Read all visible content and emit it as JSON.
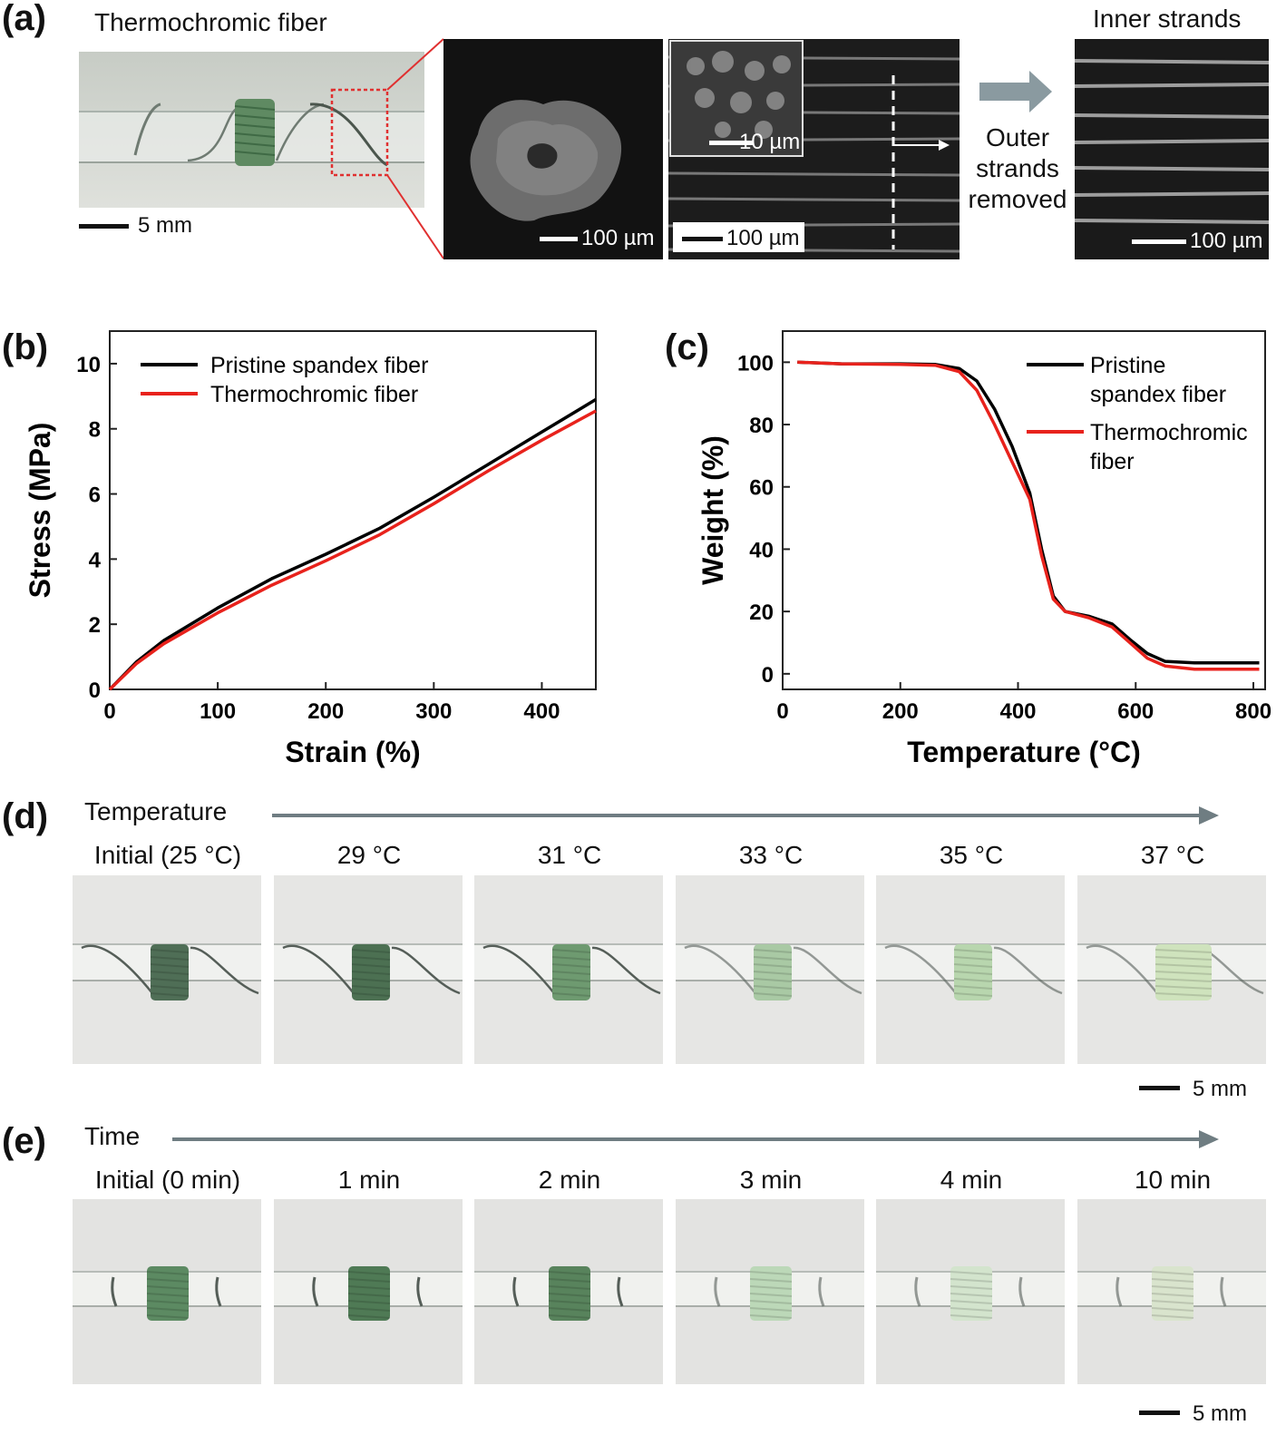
{
  "panel_a": {
    "label": "(a)",
    "photo_title": "Thermochromic fiber",
    "photo_scale": "5 mm",
    "sem1_scale": "100 µm",
    "sem2_scale": "100 µm",
    "sem2_inset_scale": "10 µm",
    "arrow_text": [
      "Outer",
      "strands",
      "removed"
    ],
    "sem3_title": "Inner strands",
    "sem3_scale": "100 µm",
    "colors": {
      "zoom_box": "#e03030",
      "arrow": "#8a9aa0",
      "fiber_green": "#5f8a62"
    }
  },
  "panel_b": {
    "label": "(b)"
  },
  "panel_c": {
    "label": "(c)"
  },
  "chart_data": [
    {
      "type": "line",
      "xlabel": "Strain (%)",
      "ylabel": "Stress (MPa)",
      "xlim": [
        0,
        450
      ],
      "ylim": [
        0,
        11
      ],
      "xticks": [
        0,
        100,
        200,
        300,
        400
      ],
      "yticks": [
        0,
        2,
        4,
        6,
        8,
        10
      ],
      "legend_placement": "top-left",
      "series": [
        {
          "name": "Pristine spandex fiber",
          "color": "#000000",
          "x": [
            0,
            25,
            50,
            100,
            150,
            200,
            250,
            300,
            350,
            400,
            450
          ],
          "y": [
            0,
            0.85,
            1.5,
            2.5,
            3.4,
            4.15,
            4.95,
            5.9,
            6.9,
            7.9,
            8.9
          ]
        },
        {
          "name": "Thermochromic fiber",
          "color": "#e8221c",
          "x": [
            0,
            25,
            50,
            100,
            150,
            200,
            250,
            300,
            350,
            400,
            450
          ],
          "y": [
            0,
            0.8,
            1.4,
            2.35,
            3.2,
            3.95,
            4.75,
            5.7,
            6.7,
            7.65,
            8.55
          ]
        }
      ]
    },
    {
      "type": "line",
      "xlabel": "Temperature (°C)",
      "ylabel": "Weight (%)",
      "xlim": [
        0,
        820
      ],
      "ylim": [
        -5,
        110
      ],
      "xticks": [
        0,
        200,
        400,
        600,
        800
      ],
      "yticks": [
        0,
        20,
        40,
        60,
        80,
        100
      ],
      "legend_placement": "top-right",
      "series": [
        {
          "name": "Pristine spandex fiber",
          "color": "#000000",
          "x": [
            25,
            100,
            200,
            260,
            300,
            330,
            360,
            390,
            420,
            440,
            460,
            480,
            520,
            560,
            590,
            620,
            650,
            700,
            750,
            810
          ],
          "y": [
            100,
            99.5,
            99.5,
            99.3,
            98,
            94,
            85,
            73,
            58,
            40,
            25,
            20,
            18.5,
            16,
            11,
            6.5,
            4,
            3.5,
            3.5,
            3.5
          ]
        },
        {
          "name": "Thermochromic fiber",
          "color": "#e8221c",
          "x": [
            25,
            100,
            200,
            260,
            300,
            330,
            360,
            390,
            420,
            440,
            460,
            480,
            520,
            560,
            590,
            620,
            650,
            700,
            750,
            810
          ],
          "y": [
            100,
            99.5,
            99.3,
            99,
            97,
            91,
            80,
            68,
            56,
            38,
            24,
            20,
            18,
            15,
            10,
            5,
            2.5,
            1.5,
            1.5,
            1.5
          ]
        }
      ]
    }
  ],
  "panel_d": {
    "label": "(d)",
    "axis_label": "Temperature",
    "captions": [
      "Initial (25 °C)",
      "29 °C",
      "31 °C",
      "33 °C",
      "35 °C",
      "37 °C"
    ],
    "fiber_colors": [
      "#4f6e56",
      "#4c7052",
      "#6e9a70",
      "#a9c9a4",
      "#b8d6ae",
      "#cfe3bd"
    ],
    "scale": "5 mm"
  },
  "panel_e": {
    "label": "(e)",
    "axis_label": "Time",
    "captions": [
      "Initial (0 min)",
      "1 min",
      "2 min",
      "3 min",
      "4 min",
      "10 min"
    ],
    "fiber_colors": [
      "#5c8a62",
      "#4f7a55",
      "#58835c",
      "#bcd8b8",
      "#d3e4cd",
      "#d9e4cd"
    ],
    "scale": "5 mm"
  }
}
